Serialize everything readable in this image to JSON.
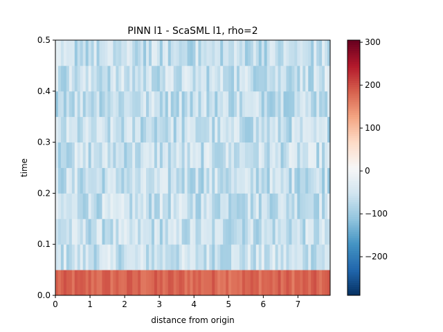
{
  "chart_data": {
    "type": "heatmap",
    "title": "PINN l1 - ScaSML l1, rho=2",
    "xlabel": "distance from origin",
    "ylabel": "time",
    "xlim": [
      0,
      7.93
    ],
    "ylim": [
      0,
      0.5
    ],
    "xticks": [
      "0",
      "1",
      "2",
      "3",
      "4",
      "5",
      "6",
      "7"
    ],
    "yticks": [
      "0.0",
      "0.1",
      "0.2",
      "0.3",
      "0.4",
      "0.5"
    ],
    "n_x_bins": 100,
    "time_rows": [
      {
        "t0": 0.0,
        "t1": 0.05,
        "base": 180
      },
      {
        "t0": 0.05,
        "t1": 0.1,
        "base": -58
      },
      {
        "t0": 0.1,
        "t1": 0.15,
        "base": -62
      },
      {
        "t0": 0.15,
        "t1": 0.2,
        "base": -60
      },
      {
        "t0": 0.2,
        "t1": 0.25,
        "base": -64
      },
      {
        "t0": 0.25,
        "t1": 0.3,
        "base": -60
      },
      {
        "t0": 0.3,
        "t1": 0.35,
        "base": -65
      },
      {
        "t0": 0.35,
        "t1": 0.4,
        "base": -62
      },
      {
        "t0": 0.4,
        "t1": 0.45,
        "base": -60
      },
      {
        "t0": 0.45,
        "t1": 0.5,
        "base": -66
      }
    ],
    "variation_amplitude": 45,
    "colorbar": {
      "vmin": -290,
      "vmax": 305,
      "ticks": [
        -200,
        -100,
        0,
        100,
        200,
        300
      ],
      "tick_labels": [
        "−200",
        "−100",
        "0",
        "100",
        "200",
        "300"
      ],
      "colormap": "RdBu_r"
    }
  }
}
